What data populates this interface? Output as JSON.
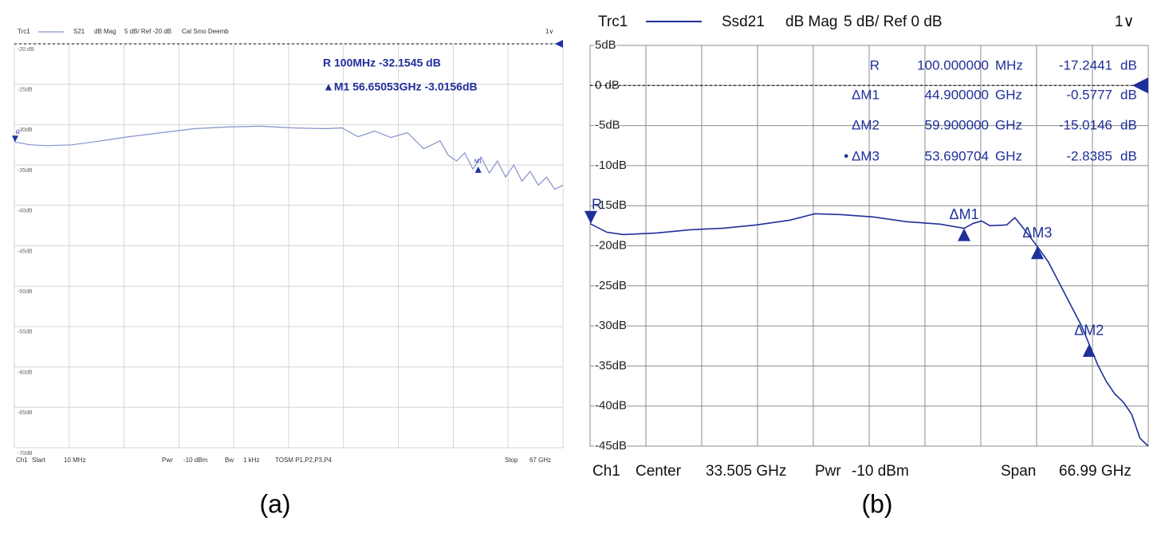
{
  "chart_data": [
    {
      "type": "line",
      "header": [
        "Trc1",
        "dB Mag",
        "5 dB/ Ref -20 dB",
        "Cal Smo Deemb",
        "1∨"
      ],
      "footer": [
        "Ch1",
        "Start",
        "10 MHz",
        "Pwr",
        "-10 dBm",
        "Bw",
        "1 kHz",
        "TOSM P1,P2,P3,P4",
        "Stop",
        "67 GHz"
      ],
      "readout": [
        [
          "R 100MHz -32.1545 dB"
        ],
        [
          "▲M1 56.65053GHz -3.0156dB"
        ]
      ],
      "caption": "(a)",
      "xlim": [
        0.01,
        67
      ],
      "xticks": [
        0.01,
        6.71,
        13.41,
        20.11,
        26.8,
        33.505,
        40.2,
        46.9,
        53.6,
        60.3,
        67
      ],
      "ylim": [
        -70,
        -20
      ],
      "yticks": [
        {
          "value": -20,
          "label": "-20 dB"
        },
        {
          "value": -25,
          "label": "-25dB"
        },
        {
          "value": -30,
          "label": "-30dB"
        },
        {
          "value": -35,
          "label": "-35dB"
        },
        {
          "value": -40,
          "label": "-40dB"
        },
        {
          "value": -45,
          "label": "-45dB"
        },
        {
          "value": -50,
          "label": "-50dB"
        },
        {
          "value": -55,
          "label": "-55dB"
        },
        {
          "value": -60,
          "label": "-60dB"
        },
        {
          "value": -65,
          "label": "-65dB"
        },
        {
          "value": -70,
          "label": "-70dB"
        }
      ],
      "grid": true,
      "grid_color": "#d4d4d4",
      "ref": -20,
      "series": [
        {
          "name": "S21",
          "color": "#8592cc",
          "x": [
            0.01,
            2,
            4,
            7,
            10,
            14,
            18,
            22,
            26,
            30,
            34,
            38,
            40,
            42,
            44,
            46,
            48,
            50,
            52,
            53,
            54,
            55,
            56,
            57,
            58,
            59,
            60,
            61,
            62,
            63,
            64,
            65,
            66,
            67
          ],
          "values": [
            -32.15,
            -32.5,
            -32.6,
            -32.5,
            -32.1,
            -31.5,
            -31.0,
            -30.5,
            -30.3,
            -30.2,
            -30.4,
            -30.5,
            -30.4,
            -31.5,
            -30.8,
            -31.6,
            -31.0,
            -33.0,
            -32.0,
            -33.8,
            -34.5,
            -33.5,
            -35.5,
            -34.0,
            -36.0,
            -34.5,
            -36.5,
            -35.0,
            -37.0,
            -35.8,
            -37.5,
            -36.5,
            -38.0,
            -37.5
          ]
        }
      ],
      "markers": [
        {
          "name": "R",
          "x": 0.1,
          "y": -32.15
        },
        {
          "name": "M1",
          "x": 56.65,
          "y": -35.17
        }
      ]
    },
    {
      "type": "line",
      "header": [
        "Trc1",
        "dB Mag",
        "5 dB/ Ref 0 dB",
        "1∨"
      ],
      "footer": [
        "Ch1",
        "Center",
        "33.505 GHz",
        "Pwr",
        "-10 dBm",
        "Span",
        "66.99 GHz"
      ],
      "readout": [
        [
          "R",
          "100.000000",
          "MHz",
          "-17.2441",
          "dB"
        ],
        [
          "ΔM1",
          "44.900000",
          "GHz",
          "-0.5777",
          "dB"
        ],
        [
          "ΔM2",
          "59.900000",
          "GHz",
          "-15.0146",
          "dB"
        ],
        [
          "• ΔM3",
          "53.690704",
          "GHz",
          "-2.8385",
          "dB"
        ]
      ],
      "caption": "(b)",
      "xlim": [
        0.01,
        67
      ],
      "xticks": [
        0.01,
        6.71,
        13.41,
        20.11,
        26.8,
        33.505,
        40.2,
        46.9,
        53.6,
        60.3,
        67
      ],
      "ylim": [
        -45,
        5
      ],
      "yticks": [
        {
          "value": 5,
          "label": "5dB"
        },
        {
          "value": 0,
          "label": "0 dB"
        },
        {
          "value": -5,
          "label": "-5dB"
        },
        {
          "value": -10,
          "label": "-10dB"
        },
        {
          "value": -15,
          "label": "-15dB"
        },
        {
          "value": -20,
          "label": "-20dB"
        },
        {
          "value": -25,
          "label": "-25dB"
        },
        {
          "value": -30,
          "label": "-30dB"
        },
        {
          "value": -35,
          "label": "-35dB"
        },
        {
          "value": -40,
          "label": "-40dB"
        },
        {
          "value": -45,
          "label": "-45dB"
        }
      ],
      "grid": true,
      "grid_color": "#8c8c8c",
      "ref": 0,
      "series": [
        {
          "name": "Ssd21",
          "color": "#1f2f9a",
          "x": [
            0.01,
            2,
            4,
            8,
            12,
            16,
            20,
            24,
            27,
            30,
            34,
            38,
            42,
            44.9,
            46,
            47,
            48,
            50,
            51,
            52,
            53.69,
            55,
            57,
            59,
            59.9,
            61,
            62,
            63,
            64,
            65,
            66,
            67
          ],
          "values": [
            -17.24,
            -18.3,
            -18.6,
            -18.4,
            -18.0,
            -17.8,
            -17.4,
            -16.8,
            -16.0,
            -16.1,
            -16.4,
            -17.0,
            -17.3,
            -17.82,
            -17.2,
            -16.9,
            -17.5,
            -17.4,
            -16.5,
            -17.8,
            -20.08,
            -22.0,
            -26.0,
            -30.0,
            -32.26,
            -35.0,
            -37.0,
            -38.5,
            -39.5,
            -41.0,
            -44.0,
            -45.0
          ]
        }
      ],
      "markers": [
        {
          "name": "R",
          "x": 0.1,
          "y": -17.24
        },
        {
          "name": "ΔM1",
          "x": 44.9,
          "y": -17.82
        },
        {
          "name": "ΔM2",
          "x": 59.9,
          "y": -32.26
        },
        {
          "name": "ΔM3",
          "x": 53.690704,
          "y": -20.08
        }
      ]
    }
  ]
}
